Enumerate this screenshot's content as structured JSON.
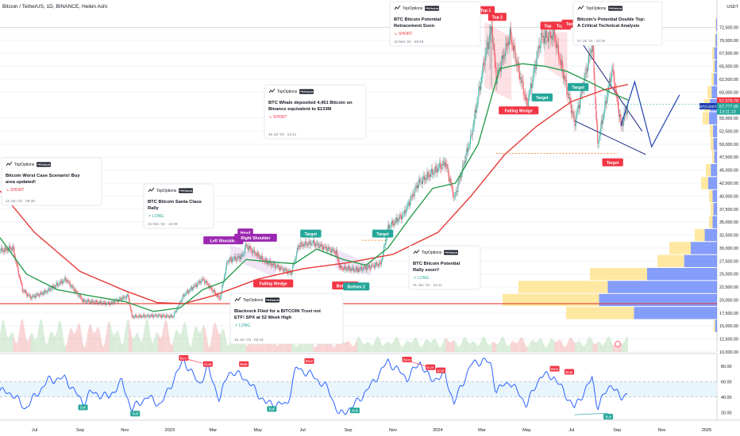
{
  "header": {
    "title": "Bitcoin / TetherUS, 1D, BINANCE, Heikin Ashi"
  },
  "axis": {
    "currency": "USDT",
    "price_ticks": [
      {
        "v": 72500,
        "t": "72,500.00"
      },
      {
        "v": 70000,
        "t": "70,000.00"
      },
      {
        "v": 67500,
        "t": "67,500.00"
      },
      {
        "v": 65000,
        "t": "65,000.00"
      },
      {
        "v": 62500,
        "t": "62,500.00"
      },
      {
        "v": 60000,
        "t": "60,000.00"
      },
      {
        "v": 55000,
        "t": "55,000.00"
      },
      {
        "v": 52500,
        "t": "52,500.00"
      },
      {
        "v": 50000,
        "t": "50,000.00"
      },
      {
        "v": 47500,
        "t": "47,500.00"
      },
      {
        "v": 45000,
        "t": "45,000.00"
      },
      {
        "v": 42500,
        "t": "42,500.00"
      },
      {
        "v": 40000,
        "t": "40,000.00"
      },
      {
        "v": 37500,
        "t": "37,500.00"
      },
      {
        "v": 35000,
        "t": "35,000.00"
      },
      {
        "v": 32500,
        "t": "32,500.00"
      },
      {
        "v": 30000,
        "t": "30,000.00"
      },
      {
        "v": 27500,
        "t": "27,500.00"
      },
      {
        "v": 25000,
        "t": "25,000.00"
      },
      {
        "v": 22500,
        "t": "22,500.00"
      },
      {
        "v": 20000,
        "t": "20,000.00"
      },
      {
        "v": 17500,
        "t": "17,500.00"
      },
      {
        "v": 15000,
        "t": "15,000.00"
      },
      {
        "v": 12500,
        "t": "12,500.00"
      },
      {
        "v": 10000,
        "t": "10,000.00"
      }
    ],
    "price_badges": [
      {
        "text": "57,579.78",
        "color": "#f23645",
        "v": 58400
      },
      {
        "text": "57,777.95",
        "color": "#26a69a",
        "v": 57300
      },
      {
        "text": "13:11:13",
        "color": "#26a69a",
        "v": 56300
      }
    ],
    "symbol_badge": "BTCUSDT",
    "rsi_ticks": [
      {
        "v": 80,
        "t": "80.00"
      },
      {
        "v": 60,
        "t": "60.00"
      },
      {
        "v": 40,
        "t": "40.00"
      },
      {
        "v": 20,
        "t": "20.00"
      }
    ],
    "time_labels": [
      "Jul",
      "Sep",
      "Nov",
      "2023",
      "Mar",
      "May",
      "Jul",
      "Sep",
      "Nov",
      "2024",
      "Mar",
      "May",
      "Jul",
      "Sep",
      "Nov",
      "2025"
    ]
  },
  "colors": {
    "up": "#26a69a",
    "down": "#f23645",
    "ma_green": "#2b9d4f",
    "ma_red": "#e53935",
    "rsi": "#2962ff",
    "band": "#e3f2fd",
    "ideas": "#1a237e"
  },
  "chart_data": {
    "type": "candlestick",
    "ylim": [
      10000,
      75000
    ],
    "rsi_ylim": [
      10,
      90
    ],
    "x_range": [
      "2022-05-15",
      "2025-01-15"
    ],
    "price_path": [
      [
        "2022-05-15",
        29500
      ],
      [
        "2022-06-01",
        30000
      ],
      [
        "2022-06-14",
        22000
      ],
      [
        "2022-06-25",
        20500
      ],
      [
        "2022-07-15",
        21500
      ],
      [
        "2022-08-12",
        24000
      ],
      [
        "2022-09-05",
        19800
      ],
      [
        "2022-10-10",
        19300
      ],
      [
        "2022-11-05",
        20800
      ],
      [
        "2022-11-10",
        16800
      ],
      [
        "2022-12-15",
        17000
      ],
      [
        "2023-01-05",
        16800
      ],
      [
        "2023-01-20",
        21000
      ],
      [
        "2023-02-15",
        24000
      ],
      [
        "2023-03-10",
        20200
      ],
      [
        "2023-03-20",
        27500
      ],
      [
        "2023-04-10",
        28500
      ],
      [
        "2023-04-14",
        30500
      ],
      [
        "2023-05-10",
        27500
      ],
      [
        "2023-06-15",
        25200
      ],
      [
        "2023-06-25",
        30500
      ],
      [
        "2023-07-14",
        31000
      ],
      [
        "2023-08-15",
        29200
      ],
      [
        "2023-08-20",
        26200
      ],
      [
        "2023-09-12",
        25800
      ],
      [
        "2023-10-15",
        27000
      ],
      [
        "2023-10-25",
        34000
      ],
      [
        "2023-11-15",
        36500
      ],
      [
        "2023-12-05",
        42500
      ],
      [
        "2024-01-11",
        46500
      ],
      [
        "2024-01-23",
        39500
      ],
      [
        "2024-02-15",
        51500
      ],
      [
        "2024-03-05",
        67000
      ],
      [
        "2024-03-14",
        72500
      ],
      [
        "2024-03-20",
        62500
      ],
      [
        "2024-04-08",
        71000
      ],
      [
        "2024-05-01",
        57500
      ],
      [
        "2024-05-20",
        70500
      ],
      [
        "2024-06-07",
        71000
      ],
      [
        "2024-07-05",
        54000
      ],
      [
        "2024-07-29",
        69500
      ],
      [
        "2024-08-05",
        50000
      ],
      [
        "2024-08-25",
        64500
      ],
      [
        "2024-09-06",
        53500
      ],
      [
        "2024-09-16",
        57700
      ]
    ],
    "ma_green": [
      [
        "2022-05-15",
        32000
      ],
      [
        "2022-06-20",
        25000
      ],
      [
        "2022-08-01",
        22000
      ],
      [
        "2022-09-15",
        20800
      ],
      [
        "2022-11-01",
        19700
      ],
      [
        "2022-12-10",
        17800
      ],
      [
        "2023-01-15",
        18500
      ],
      [
        "2023-02-15",
        22000
      ],
      [
        "2023-03-15",
        23500
      ],
      [
        "2023-04-15",
        27800
      ],
      [
        "2023-05-20",
        27300
      ],
      [
        "2023-06-20",
        27000
      ],
      [
        "2023-07-20",
        29800
      ],
      [
        "2023-08-25",
        27800
      ],
      [
        "2023-09-25",
        26700
      ],
      [
        "2023-10-25",
        30000
      ],
      [
        "2023-11-25",
        36000
      ],
      [
        "2023-12-25",
        41500
      ],
      [
        "2024-01-25",
        42500
      ],
      [
        "2024-02-25",
        50000
      ],
      [
        "2024-03-25",
        64500
      ],
      [
        "2024-04-25",
        65500
      ],
      [
        "2024-05-25",
        65000
      ],
      [
        "2024-06-25",
        64000
      ],
      [
        "2024-07-25",
        62000
      ],
      [
        "2024-08-25",
        59800
      ],
      [
        "2024-09-16",
        58500
      ]
    ],
    "ma_red": [
      [
        "2022-05-15",
        41000
      ],
      [
        "2022-07-01",
        33000
      ],
      [
        "2022-09-01",
        25500
      ],
      [
        "2022-11-01",
        21800
      ],
      [
        "2022-12-15",
        19500
      ],
      [
        "2023-01-20",
        19300
      ],
      [
        "2023-03-01",
        20800
      ],
      [
        "2023-05-01",
        24000
      ],
      [
        "2023-07-01",
        26000
      ],
      [
        "2023-09-01",
        27200
      ],
      [
        "2023-11-01",
        28800
      ],
      [
        "2024-01-01",
        33000
      ],
      [
        "2024-02-15",
        40000
      ],
      [
        "2024-04-01",
        48000
      ],
      [
        "2024-05-15",
        53500
      ],
      [
        "2024-07-01",
        58200
      ],
      [
        "2024-08-15",
        60500
      ],
      [
        "2024-09-16",
        61500
      ]
    ],
    "rsi": [
      [
        "2022-05-15",
        48
      ],
      [
        "2022-06-01",
        44
      ],
      [
        "2022-06-18",
        25
      ],
      [
        "2022-07-01",
        40
      ],
      [
        "2022-07-20",
        62
      ],
      [
        "2022-08-12",
        64
      ],
      [
        "2022-09-05",
        32
      ],
      [
        "2022-09-15",
        46
      ],
      [
        "2022-10-10",
        40
      ],
      [
        "2022-10-28",
        60
      ],
      [
        "2022-11-10",
        24
      ],
      [
        "2022-12-01",
        40
      ],
      [
        "2022-12-20",
        30
      ],
      [
        "2023-01-20",
        88
      ],
      [
        "2023-02-10",
        56
      ],
      [
        "2023-02-22",
        78
      ],
      [
        "2023-03-10",
        36
      ],
      [
        "2023-03-22",
        73
      ],
      [
        "2023-04-12",
        66
      ],
      [
        "2023-05-12",
        32
      ],
      [
        "2023-06-10",
        30
      ],
      [
        "2023-06-22",
        78
      ],
      [
        "2023-07-14",
        68
      ],
      [
        "2023-08-05",
        50
      ],
      [
        "2023-08-20",
        16
      ],
      [
        "2023-09-10",
        30
      ],
      [
        "2023-10-01",
        54
      ],
      [
        "2023-10-25",
        86
      ],
      [
        "2023-11-20",
        64
      ],
      [
        "2023-12-08",
        85
      ],
      [
        "2023-12-22",
        62
      ],
      [
        "2024-01-11",
        68
      ],
      [
        "2024-01-23",
        32
      ],
      [
        "2024-02-15",
        82
      ],
      [
        "2024-03-05",
        88
      ],
      [
        "2024-03-14",
        80
      ],
      [
        "2024-03-20",
        48
      ],
      [
        "2024-04-08",
        60
      ],
      [
        "2024-05-01",
        30
      ],
      [
        "2024-05-20",
        68
      ],
      [
        "2024-06-07",
        66
      ],
      [
        "2024-07-05",
        26
      ],
      [
        "2024-07-29",
        64
      ],
      [
        "2024-08-05",
        28
      ],
      [
        "2024-08-25",
        58
      ],
      [
        "2024-09-06",
        36
      ],
      [
        "2024-09-16",
        48
      ]
    ]
  },
  "zone_labels": [
    {
      "text": "Left Shoulder",
      "color": "#9c27b0",
      "d": "2023-03-15",
      "v": 31500
    },
    {
      "text": "Head",
      "color": "#9c27b0",
      "d": "2023-04-14",
      "v": 33000
    },
    {
      "text": "Right Shoulder",
      "color": "#9c27b0",
      "d": "2023-04-28",
      "v": 32000
    },
    {
      "text": "Falling Wedge",
      "color": "#f23645",
      "d": "2023-05-22",
      "v": 23200
    },
    {
      "text": "Target",
      "color": "#26a69a",
      "d": "2023-07-12",
      "v": 32800
    },
    {
      "text": "Bottom 1",
      "color": "#f23645",
      "d": "2023-08-28",
      "v": 22800
    },
    {
      "text": "Bottom 2",
      "color": "#26a69a",
      "d": "2023-09-12",
      "v": 22600
    },
    {
      "text": "Target",
      "color": "#26a69a",
      "d": "2023-10-18",
      "v": 32800
    },
    {
      "text": "Top 1",
      "color": "#f23645",
      "d": "2024-03-06",
      "v": 75800
    },
    {
      "text": "Top 2",
      "color": "#f23645",
      "d": "2024-03-22",
      "v": 74500
    },
    {
      "text": "Falling Wedge",
      "color": "#f23645",
      "d": "2024-04-20",
      "v": 56500
    },
    {
      "text": "Target",
      "color": "#26a69a",
      "d": "2024-05-22",
      "v": 59000
    },
    {
      "text": "Top 1",
      "color": "#f23645",
      "d": "2024-06-01",
      "v": 72800
    },
    {
      "text": "Top 2",
      "color": "#f23645",
      "d": "2024-06-18",
      "v": 72800
    },
    {
      "text": "Target",
      "color": "#f23645",
      "d": "2024-07-02",
      "v": 73200
    },
    {
      "text": "Target",
      "color": "#26a69a",
      "d": "2024-07-10",
      "v": 61000
    },
    {
      "text": "Target",
      "color": "#f23645",
      "d": "2024-08-26",
      "v": 46500
    }
  ],
  "rsi_labels": [
    {
      "text": "Bull",
      "color": "#26a69a",
      "d": "2022-09-05",
      "r": 26
    },
    {
      "text": "Bull",
      "color": "#26a69a",
      "d": "2022-11-15",
      "r": 18
    },
    {
      "text": "Bear",
      "color": "#f23645",
      "d": "2023-01-20",
      "r": 90
    },
    {
      "text": "Bear",
      "color": "#f23645",
      "d": "2023-02-22",
      "r": 82
    },
    {
      "text": "Bear",
      "color": "#f23645",
      "d": "2023-04-12",
      "r": 82
    },
    {
      "text": "Bull",
      "color": "#26a69a",
      "d": "2023-05-20",
      "r": 24
    },
    {
      "text": "Bear",
      "color": "#f23645",
      "d": "2023-07-10",
      "r": 86
    },
    {
      "text": "Bull",
      "color": "#26a69a",
      "d": "2023-09-10",
      "r": 22
    },
    {
      "text": "Bear",
      "color": "#f23645",
      "d": "2023-11-20",
      "r": 88
    },
    {
      "text": "Bear",
      "color": "#f23645",
      "d": "2023-12-22",
      "r": 78
    },
    {
      "text": "Bear",
      "color": "#f23645",
      "d": "2024-01-05",
      "r": 74
    },
    {
      "text": "Bear",
      "color": "#f23645",
      "d": "2024-06-08",
      "r": 76
    },
    {
      "text": "Bear",
      "color": "#f23645",
      "d": "2024-06-28",
      "r": 72
    },
    {
      "text": "Bull",
      "color": "#26a69a",
      "d": "2024-08-20",
      "r": 14
    }
  ],
  "publisher": {
    "name": "TopOptions",
    "badge": "PREMIUM"
  },
  "ideas": [
    {
      "title": "Bitcoin Worst Case Scenario! Buy area updated!",
      "signal": "SHORT",
      "signal_color": "#f23645",
      "date": "12 Jun '22 · 09:39"
    },
    {
      "title": "BTC Bitcoin Santa Claus Rally",
      "signal": "LONG",
      "signal_color": "#26a69a",
      "date": "24 Dec '22 · 13:39"
    },
    {
      "title": "BTC Whale deposited 4,451 Bitcoin on Binance equivalent to $133M",
      "signal": "SHORT",
      "signal_color": "#f23645",
      "date": "19 Jul '23 · 13:14"
    },
    {
      "title": "Blackrock Filed for a BITCOIN Trust not ETF! SPX at 52 Week High",
      "signal": "LONG",
      "signal_color": "#26a69a",
      "date": "16 Jun '23 · 00:44"
    },
    {
      "title": "BTC Bitcoin Potential Retracement Soon",
      "signal": "SHORT",
      "signal_color": "#f23645",
      "date": "12 Mar '24 · 09:48"
    },
    {
      "title": "BTC Bitcoin Potential Rally soon!!",
      "signal": "LONG",
      "signal_color": "#26a69a",
      "date": "21 Jan '24 · 13:41"
    },
    {
      "title": "Bitcoin's Potential Double Top: A Critical Technical Analysis",
      "signal": "",
      "signal_color": "#26a69a",
      "date": "07 Jul '24 · 10:19"
    }
  ]
}
